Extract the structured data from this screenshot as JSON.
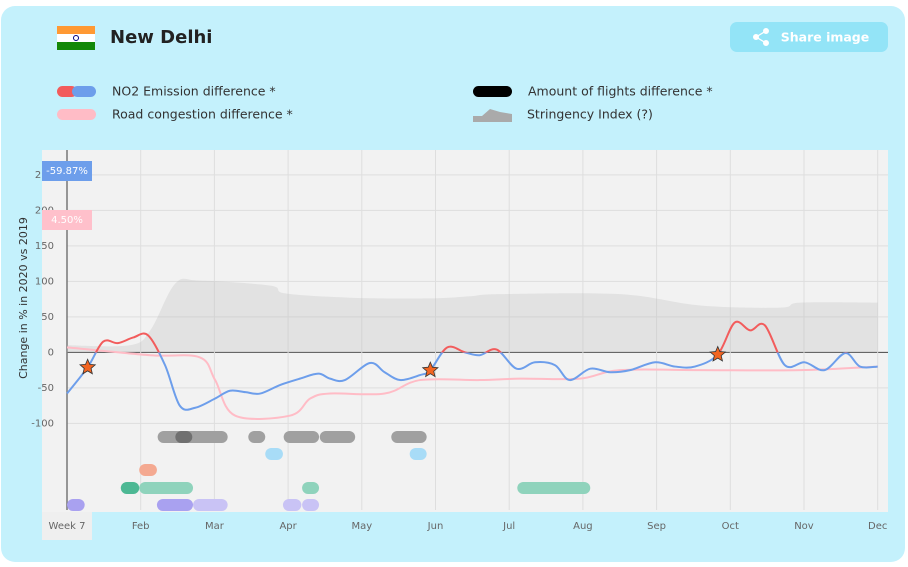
{
  "header": {
    "title": "New Delhi",
    "share_button": "Share image"
  },
  "chart_data": {
    "type": "line",
    "ylabel": "Change in % in 2020 vs 2019",
    "xlim": [
      0,
      11.14
    ],
    "ylim": [
      -222,
      285
    ],
    "xticks": [
      {
        "value": 0,
        "label": "Week 7"
      },
      {
        "value": 1,
        "label": "Feb"
      },
      {
        "value": 2,
        "label": "Mar"
      },
      {
        "value": 3,
        "label": "Apr"
      },
      {
        "value": 4,
        "label": "May"
      },
      {
        "value": 5,
        "label": "Jun"
      },
      {
        "value": 6,
        "label": "Jul"
      },
      {
        "value": 7,
        "label": "Aug"
      },
      {
        "value": 8,
        "label": "Sep"
      },
      {
        "value": 9,
        "label": "Oct"
      },
      {
        "value": 10,
        "label": "Nov"
      },
      {
        "value": 11,
        "label": "Dec"
      }
    ],
    "yticks": [
      -100,
      -50,
      0,
      50,
      100,
      150,
      200,
      250
    ],
    "grid": true,
    "badges": [
      {
        "label": "-59.87%",
        "value": -59.87,
        "color": "#6d9eeb"
      },
      {
        "label": "4.50%",
        "value": 4.5,
        "color": "#ffc0cb"
      }
    ],
    "series": [
      {
        "name": "NO2 Emission difference *",
        "color": "#f25c5c",
        "color_below": "#6d9eeb",
        "kind": "line",
        "x": [
          0,
          0.28,
          0.49,
          0.69,
          0.9,
          1.1,
          1.33,
          1.53,
          1.74,
          2.01,
          2.21,
          2.42,
          2.62,
          2.89,
          3.16,
          3.41,
          3.57,
          3.77,
          4.11,
          4.31,
          4.52,
          4.79,
          4.93,
          5.16,
          5.4,
          5.6,
          5.83,
          6.1,
          6.35,
          6.62,
          6.82,
          7.1,
          7.37,
          7.64,
          7.98,
          8.25,
          8.52,
          8.83,
          9.06,
          9.27,
          9.47,
          9.74,
          10.01,
          10.28,
          10.56,
          10.76,
          11.0
        ],
        "values": [
          -58,
          -21,
          15,
          13,
          21,
          24,
          -18,
          -75,
          -78,
          -65,
          -54,
          -56,
          -58,
          -46,
          -37,
          -30,
          -37,
          -39,
          -15,
          -28,
          -39,
          -32,
          -25,
          7,
          0,
          -4,
          4,
          -23,
          -14,
          -18,
          -39,
          -23,
          -28,
          -25,
          -14,
          -20,
          -20,
          -3,
          42,
          31,
          38,
          -18,
          -14,
          -25,
          -1,
          -20,
          -20
        ]
      },
      {
        "name": "Amount of flights difference *",
        "color": "#000000",
        "kind": "line",
        "x": [],
        "values": []
      },
      {
        "name": "Road congestion difference *",
        "color": "#ffbcc6",
        "kind": "line",
        "x": [
          0,
          1.13,
          1.8,
          2.01,
          2.28,
          3.03,
          3.3,
          3.57,
          4.31,
          4.79,
          5.6,
          6.15,
          6.96,
          7.5,
          8.59,
          9.95,
          11.0
        ],
        "values": [
          7,
          -4,
          -7,
          -39,
          -89,
          -89,
          -65,
          -58,
          -58,
          -39,
          -39,
          -37,
          -37,
          -25,
          -25,
          -25,
          -20
        ]
      },
      {
        "name": "Stringency Index (?)",
        "color": "#bdbdbd",
        "kind": "area",
        "x": [
          0,
          0.85,
          1.13,
          1.47,
          1.8,
          2.76,
          2.96,
          3.84,
          4.93,
          5.47,
          5.87,
          7.5,
          8.59,
          9.68,
          9.95,
          11.0
        ],
        "values": [
          10,
          10,
          31,
          97,
          101,
          94,
          83,
          77,
          76,
          79,
          82,
          82,
          66,
          63,
          70,
          70
        ]
      }
    ],
    "markers": {
      "color": "#f26522",
      "x": [
        0.28,
        4.93,
        8.83
      ],
      "values": [
        -21,
        -25,
        -3
      ]
    },
    "event_lanes": [
      {
        "color": "#a0a0a0",
        "ranges": [
          [
            1.23,
            2.18
          ],
          [
            2.46,
            2.69
          ],
          [
            2.94,
            3.42
          ],
          [
            3.43,
            3.91
          ],
          [
            4.4,
            4.88
          ]
        ]
      },
      {
        "color": "#707070",
        "ranges": [
          [
            1.47,
            1.7
          ]
        ]
      },
      {
        "color": "#a8dcf7",
        "ranges": [
          [
            2.69,
            2.93
          ],
          [
            4.65,
            4.88
          ]
        ]
      },
      {
        "color": "#f4a991",
        "ranges": [
          [
            0.98,
            1.22
          ]
        ]
      },
      {
        "color": "#8fd3bc",
        "ranges": [
          [
            0.98,
            1.71
          ],
          [
            3.19,
            3.42
          ],
          [
            6.11,
            7.1
          ]
        ]
      },
      {
        "color": "#4db894",
        "ranges": [
          [
            0.73,
            0.98
          ]
        ]
      },
      {
        "color": "#c9c3f5",
        "ranges": [
          [
            1.71,
            2.18
          ],
          [
            2.93,
            3.18
          ],
          [
            3.19,
            3.42
          ]
        ]
      },
      {
        "color": "#a9a1f0",
        "ranges": [
          [
            0,
            0.24
          ],
          [
            1.22,
            1.71
          ]
        ]
      }
    ]
  }
}
